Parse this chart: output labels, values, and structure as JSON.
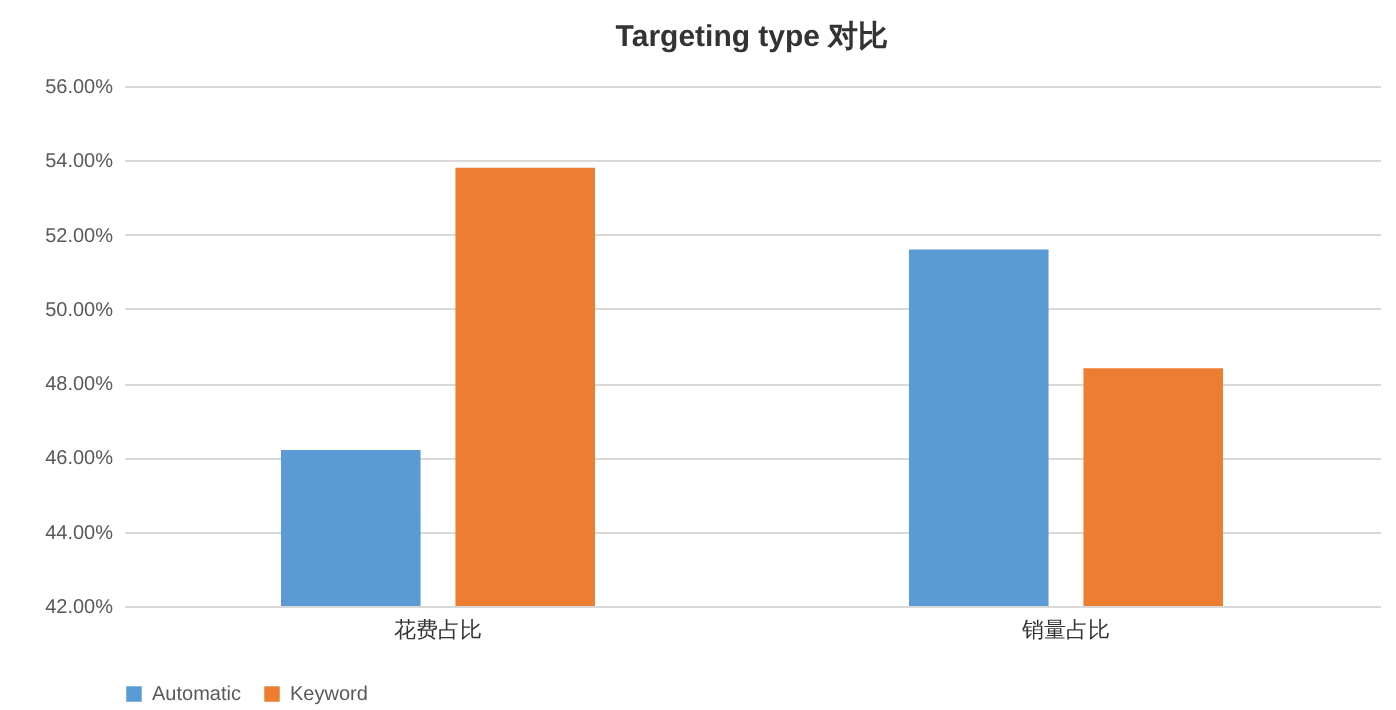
{
  "chart_data": {
    "type": "bar",
    "title": "Targeting type 对比",
    "categories": [
      "花费占比",
      "销量占比"
    ],
    "series": [
      {
        "name": "Automatic",
        "color": "#5b9bd5",
        "values": [
          46.2,
          51.6
        ]
      },
      {
        "name": "Keyword",
        "color": "#ed7d31",
        "values": [
          53.8,
          48.4
        ]
      }
    ],
    "ylim": [
      42,
      56
    ],
    "yticks": [
      {
        "value": 42,
        "label": "42.00%"
      },
      {
        "value": 44,
        "label": "44.00%"
      },
      {
        "value": 46,
        "label": "46.00%"
      },
      {
        "value": 48,
        "label": "48.00%"
      },
      {
        "value": 50,
        "label": "50.00%"
      },
      {
        "value": 52,
        "label": "52.00%"
      },
      {
        "value": 54,
        "label": "54.00%"
      },
      {
        "value": 56,
        "label": "56.00%"
      }
    ],
    "grid": "y",
    "legend": "bottom"
  }
}
